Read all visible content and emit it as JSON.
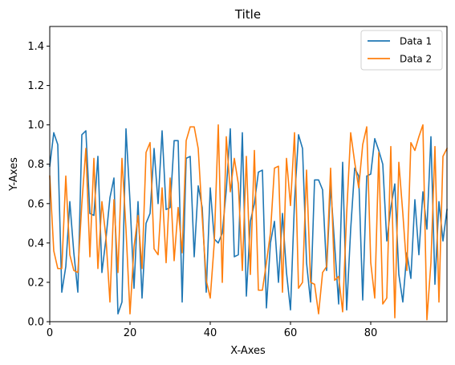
{
  "chart_data": {
    "type": "line",
    "title": "Title",
    "xlabel": "X-Axes",
    "ylabel": "Y-Axes",
    "xlim": [
      0,
      99
    ],
    "ylim": [
      0,
      1.5
    ],
    "xticks": [
      0,
      20,
      40,
      60,
      80
    ],
    "yticks": [
      0.0,
      0.2,
      0.4,
      0.6,
      0.8,
      1.0,
      1.2,
      1.4
    ],
    "xtick_labels": [
      "0",
      "20",
      "40",
      "60",
      "80"
    ],
    "ytick_labels": [
      "0.0",
      "0.2",
      "0.4",
      "0.6",
      "0.8",
      "1.0",
      "1.2",
      "1.4"
    ],
    "grid": false,
    "legend_position": "top-right",
    "series": [
      {
        "name": "Data 1",
        "color": "#1f77b4",
        "values": [
          0.79,
          0.96,
          0.9,
          0.15,
          0.28,
          0.61,
          0.35,
          0.15,
          0.95,
          0.97,
          0.55,
          0.54,
          0.84,
          0.25,
          0.42,
          0.63,
          0.73,
          0.04,
          0.1,
          0.98,
          0.61,
          0.17,
          0.61,
          0.12,
          0.5,
          0.55,
          0.88,
          0.6,
          0.97,
          0.57,
          0.58,
          0.92,
          0.92,
          0.1,
          0.83,
          0.84,
          0.33,
          0.69,
          0.58,
          0.15,
          0.68,
          0.42,
          0.4,
          0.45,
          0.67,
          0.98,
          0.33,
          0.34,
          0.96,
          0.13,
          0.51,
          0.6,
          0.76,
          0.77,
          0.07,
          0.4,
          0.51,
          0.2,
          0.55,
          0.25,
          0.06,
          0.61,
          0.95,
          0.88,
          0.3,
          0.1,
          0.72,
          0.72,
          0.67,
          0.26,
          0.69,
          0.39,
          0.09,
          0.81,
          0.06,
          0.47,
          0.78,
          0.74,
          0.11,
          0.74,
          0.75,
          0.93,
          0.87,
          0.8,
          0.41,
          0.58,
          0.7,
          0.24,
          0.1,
          0.35,
          0.22,
          0.62,
          0.34,
          0.66,
          0.47,
          0.94,
          0.19,
          0.61,
          0.41,
          0.57
        ],
        "values2": []
      },
      {
        "name": "Data 2",
        "color": "#ff7f0e",
        "values": [
          0.74,
          0.36,
          0.27,
          0.27,
          0.74,
          0.34,
          0.26,
          0.25,
          0.6,
          0.88,
          0.33,
          0.83,
          0.27,
          0.61,
          0.43,
          0.1,
          0.62,
          0.25,
          0.83,
          0.47,
          0.04,
          0.38,
          0.54,
          0.27,
          0.86,
          0.91,
          0.37,
          0.34,
          0.68,
          0.3,
          0.73,
          0.31,
          0.58,
          0.35,
          0.92,
          0.99,
          0.99,
          0.88,
          0.53,
          0.21,
          0.12,
          0.4,
          1.0,
          0.2,
          0.94,
          0.66,
          0.83,
          0.7,
          0.26,
          0.84,
          0.24,
          0.87,
          0.16,
          0.16,
          0.3,
          0.45,
          0.78,
          0.79,
          0.15,
          0.83,
          0.59,
          0.96,
          0.17,
          0.2,
          0.77,
          0.2,
          0.19,
          0.04,
          0.25,
          0.28,
          0.78,
          0.21,
          0.23,
          0.05,
          0.55,
          0.96,
          0.81,
          0.68,
          0.9,
          0.99,
          0.3,
          0.12,
          0.86,
          0.09,
          0.12,
          0.89,
          0.02,
          0.81,
          0.55,
          0.26,
          0.91,
          0.87,
          0.94,
          1.0,
          0.01,
          0.3,
          0.89,
          0.1,
          0.84,
          0.88
        ],
        "values2": []
      }
    ]
  }
}
